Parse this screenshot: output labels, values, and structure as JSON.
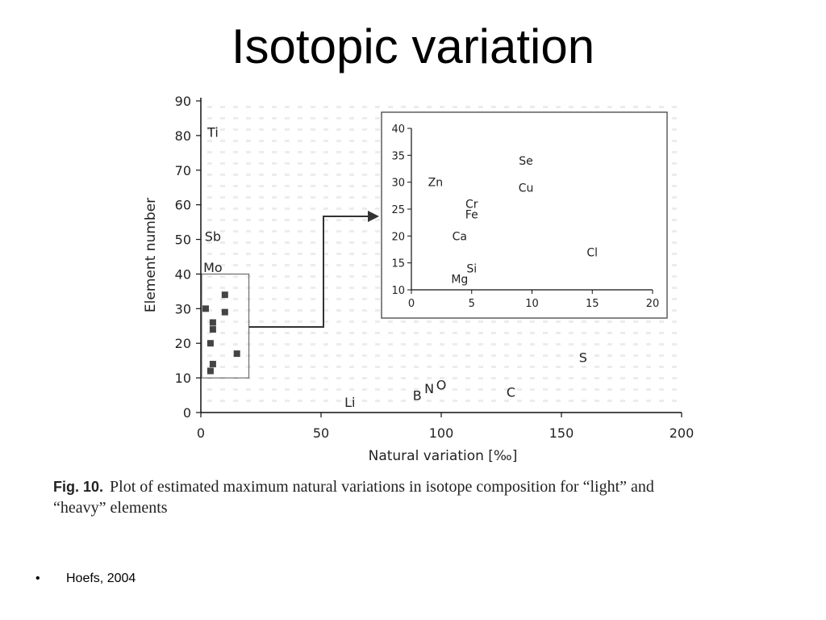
{
  "slide": {
    "title": "Isotopic variation",
    "caption_label": "Fig. 10.",
    "caption_line1": "Plot of estimated maximum natural variations in isotope composition for “light” and",
    "caption_line2": "“heavy” elements",
    "bullet_marker": "•",
    "bullet_text": "Hoefs, 2004"
  },
  "colors": {
    "ink": "#222222",
    "marker": "#444444",
    "axis": "#111111"
  },
  "chart_data": [
    {
      "type": "scatter",
      "xlabel": "Natural variation [‰]",
      "ylabel": "Element number",
      "xlim": [
        0,
        200
      ],
      "ylim": [
        0,
        90
      ],
      "x_ticks": [
        "0",
        "50",
        "100",
        "150",
        "200"
      ],
      "y_ticks": [
        "0",
        "10",
        "20",
        "30",
        "40",
        "50",
        "60",
        "70",
        "80",
        "90"
      ],
      "labeled_points": [
        {
          "label": "Ti",
          "x": 5,
          "y": 81
        },
        {
          "label": "Sb",
          "x": 5,
          "y": 51
        },
        {
          "label": "Mo",
          "x": 5,
          "y": 42
        },
        {
          "label": "Li",
          "x": 62,
          "y": 3
        },
        {
          "label": "B",
          "x": 90,
          "y": 5
        },
        {
          "label": "N",
          "x": 95,
          "y": 7
        },
        {
          "label": "O",
          "x": 100,
          "y": 8
        },
        {
          "label": "C",
          "x": 129,
          "y": 6
        },
        {
          "label": "S",
          "x": 159,
          "y": 16
        }
      ],
      "unlabeled_points": [
        {
          "x": 2,
          "y": 30
        },
        {
          "x": 10,
          "y": 34
        },
        {
          "x": 5,
          "y": 26
        },
        {
          "x": 5,
          "y": 24
        },
        {
          "x": 10,
          "y": 29
        },
        {
          "x": 4,
          "y": 20
        },
        {
          "x": 15,
          "y": 17
        },
        {
          "x": 5,
          "y": 14
        },
        {
          "x": 4,
          "y": 12
        }
      ],
      "zoom_region": {
        "xlim": [
          0,
          20
        ],
        "ylim": [
          10,
          40
        ]
      }
    },
    {
      "type": "scatter",
      "role": "inset",
      "xlim": [
        0,
        20
      ],
      "ylim": [
        10,
        40
      ],
      "x_ticks": [
        "0",
        "5",
        "10",
        "15",
        "20"
      ],
      "y_ticks": [
        "10",
        "15",
        "20",
        "25",
        "30",
        "35",
        "40"
      ],
      "labeled_points": [
        {
          "label": "Se",
          "x": 9.5,
          "y": 34
        },
        {
          "label": "Zn",
          "x": 2.0,
          "y": 30
        },
        {
          "label": "Cu",
          "x": 9.5,
          "y": 29
        },
        {
          "label": "Cr",
          "x": 5.0,
          "y": 26
        },
        {
          "label": "Fe",
          "x": 5.0,
          "y": 24
        },
        {
          "label": "Ca",
          "x": 4.0,
          "y": 20
        },
        {
          "label": "Cl",
          "x": 15.0,
          "y": 17
        },
        {
          "label": "Si",
          "x": 5.0,
          "y": 14
        },
        {
          "label": "Mg",
          "x": 4.0,
          "y": 12
        }
      ]
    }
  ]
}
